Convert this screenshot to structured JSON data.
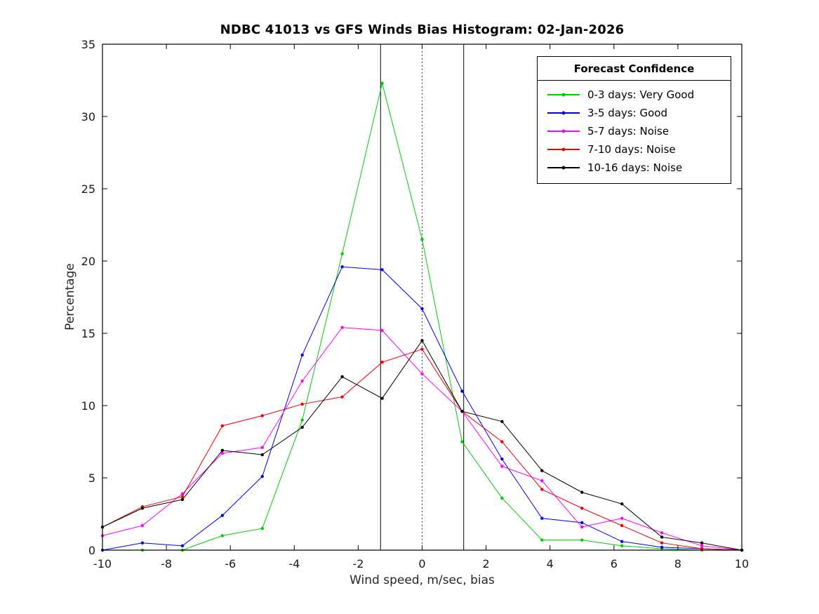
{
  "chart_data": {
    "type": "line",
    "title": "NDBC 41013 vs GFS Winds Bias Histogram: 02-Jan-2026",
    "xlabel": "Wind speed, m/sec, bias",
    "ylabel": "Percentage",
    "xlim": [
      -10,
      10
    ],
    "ylim": [
      0,
      35
    ],
    "xticks": [
      -10,
      -8,
      -6,
      -4,
      -2,
      0,
      2,
      4,
      6,
      8,
      10
    ],
    "yticks": [
      0,
      5,
      10,
      15,
      20,
      25,
      30,
      35
    ],
    "grid": false,
    "legend": {
      "title": "Forecast Confidence",
      "position": "top-right"
    },
    "vlines": [
      {
        "x": -1.3,
        "style": "solid",
        "color": "#000000"
      },
      {
        "x": 0,
        "style": "dotted",
        "color": "#000000"
      },
      {
        "x": 1.3,
        "style": "solid",
        "color": "#000000"
      }
    ],
    "x": [
      -10,
      -8.75,
      -7.5,
      -6.25,
      -5,
      -3.75,
      -2.5,
      -1.25,
      0,
      1.25,
      2.5,
      3.75,
      5,
      6.25,
      7.5,
      8.75,
      10
    ],
    "series": [
      {
        "label": "0-3 days: Very Good",
        "color": "#00cc00",
        "values": [
          0,
          0,
          0,
          1.0,
          1.5,
          9.0,
          20.5,
          32.3,
          21.5,
          7.5,
          3.6,
          0.7,
          0.7,
          0.3,
          0.1,
          0,
          0
        ]
      },
      {
        "label": "3-5 days: Good",
        "color": "#0000ee",
        "values": [
          0,
          0.5,
          0.3,
          2.4,
          5.1,
          13.5,
          19.6,
          19.4,
          16.7,
          11.0,
          6.3,
          2.2,
          1.9,
          0.6,
          0.2,
          0.1,
          0
        ]
      },
      {
        "label": "5-7 days: Noise",
        "color": "#ff00ff",
        "values": [
          1.0,
          1.7,
          3.9,
          6.7,
          7.1,
          11.7,
          15.4,
          15.2,
          12.2,
          9.6,
          5.8,
          4.8,
          1.6,
          2.2,
          1.2,
          0.3,
          0
        ]
      },
      {
        "label": "7-10 days: Noise",
        "color": "#ee0000",
        "values": [
          1.6,
          3.0,
          3.7,
          8.6,
          9.3,
          10.1,
          10.6,
          13.0,
          13.9,
          9.6,
          7.5,
          4.2,
          2.9,
          1.7,
          0.5,
          0.1,
          0
        ]
      },
      {
        "label": "10-16 days: Noise",
        "color": "#000000",
        "values": [
          1.6,
          2.9,
          3.5,
          6.9,
          6.6,
          8.5,
          12.0,
          10.5,
          14.5,
          9.6,
          8.9,
          5.5,
          4.0,
          3.2,
          0.9,
          0.5,
          0
        ]
      }
    ]
  }
}
